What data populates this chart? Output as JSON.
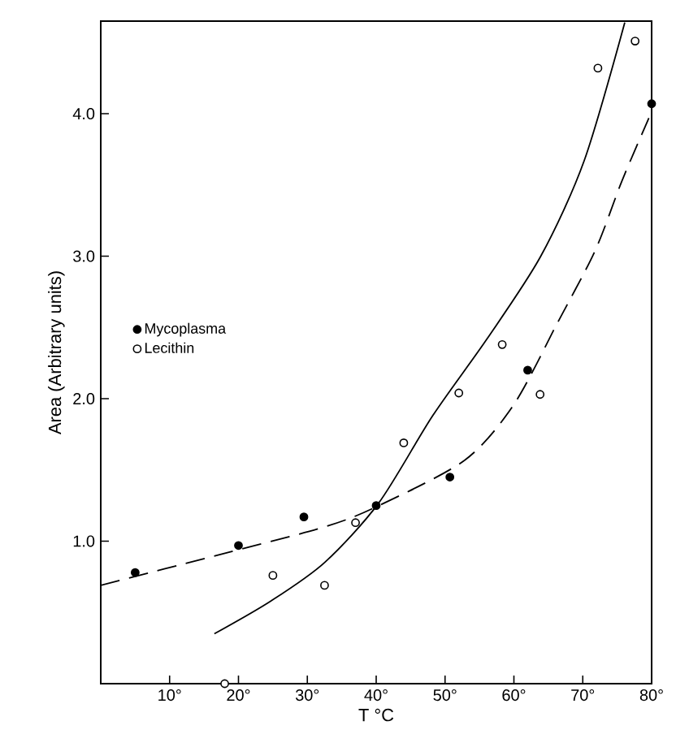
{
  "chart_data": {
    "type": "scatter",
    "xlabel": "T °C",
    "ylabel": "Area (Arbitrary units)",
    "xlim": [
      0,
      80
    ],
    "ylim": [
      0,
      4.65
    ],
    "xticks": [
      {
        "value": 10,
        "label": "10°"
      },
      {
        "value": 20,
        "label": "20°"
      },
      {
        "value": 30,
        "label": "30°"
      },
      {
        "value": 40,
        "label": "40°"
      },
      {
        "value": 50,
        "label": "50°"
      },
      {
        "value": 60,
        "label": "60°"
      },
      {
        "value": 70,
        "label": "70°"
      },
      {
        "value": 80,
        "label": "80°"
      }
    ],
    "yticks": [
      {
        "value": 1,
        "label": "1.0"
      },
      {
        "value": 2,
        "label": "2.0"
      },
      {
        "value": 3,
        "label": "3.0"
      },
      {
        "value": 4,
        "label": "4.0"
      }
    ],
    "legend": "left",
    "grid": false,
    "series": [
      {
        "name": "Mycoplasma",
        "marker": "circle",
        "color": "#000000",
        "x": [
          5,
          20,
          29.5,
          40,
          50.7,
          62,
          80
        ],
        "values": [
          0.78,
          0.97,
          1.17,
          1.25,
          1.45,
          2.2,
          4.07
        ]
      },
      {
        "name": "Lecithin",
        "marker": "circle",
        "color": "#000000",
        "x": [
          18,
          25,
          32.5,
          37,
          44,
          52,
          58.3,
          63.8,
          72.2,
          77.6
        ],
        "values": [
          0,
          0.76,
          0.69,
          1.13,
          1.69,
          2.04,
          2.38,
          2.03,
          4.32,
          4.51
        ]
      },
      {
        "type": "line",
        "marker": "none",
        "line_style": "dashed",
        "color": "#000000",
        "x": [
          0,
          16.8,
          32.5,
          40.4,
          52.9,
          60,
          66.3,
          71.8,
          75.7,
          79.6
        ],
        "values": [
          0.69,
          0.9,
          1.1,
          1.25,
          1.57,
          1.96,
          2.53,
          3.04,
          3.53,
          3.97
        ]
      },
      {
        "type": "line",
        "marker": "none",
        "line_style": "solid",
        "color": "#000000",
        "x": [
          16.5,
          24.7,
          32.5,
          40.4,
          48.2,
          56.1,
          63.9,
          70.2,
          76.1
        ],
        "values": [
          0.35,
          0.58,
          0.85,
          1.27,
          1.88,
          2.42,
          3.0,
          3.67,
          4.64
        ]
      }
    ]
  }
}
